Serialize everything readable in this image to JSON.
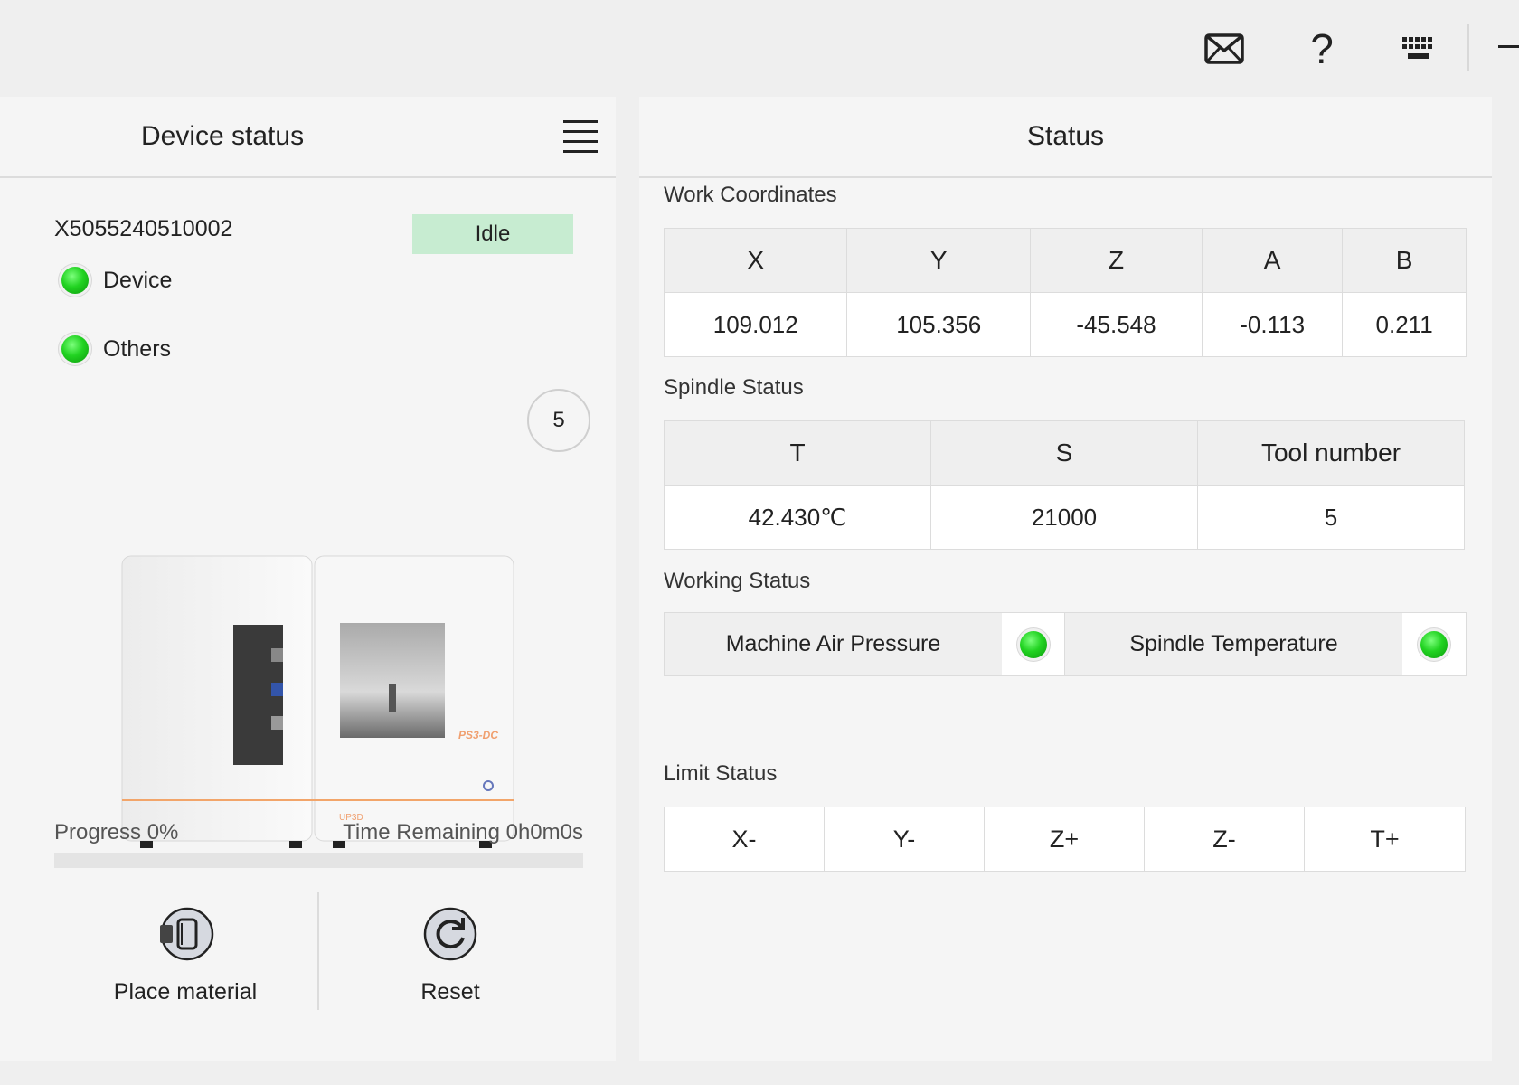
{
  "topbar": {
    "icons": [
      "mail-icon",
      "help-icon",
      "keyboard-icon",
      "minimize-icon"
    ],
    "help_glyph": "?"
  },
  "device_panel": {
    "title": "Device status",
    "serial": "X5055240510002",
    "state": "Idle",
    "state_color": "#c7ecd1",
    "indicators": [
      {
        "label": "Device",
        "status": "ok",
        "color": "#22d322"
      },
      {
        "label": "Others",
        "status": "ok",
        "color": "#22d322"
      }
    ],
    "tool_number": "5",
    "machine_model": "PS3-DC",
    "machine_brand": "UP3D",
    "progress_label": "Progress 0%",
    "progress_value": 0,
    "time_remaining": "Time Remaining 0h0m0s",
    "actions": [
      {
        "label": "Place material",
        "icon": "place-material-icon"
      },
      {
        "label": "Reset",
        "icon": "reset-icon"
      }
    ]
  },
  "status_panel": {
    "title": "Status",
    "work_coordinates": {
      "title": "Work Coordinates",
      "headers": [
        "X",
        "Y",
        "Z",
        "A",
        "B"
      ],
      "values": [
        "109.012",
        "105.356",
        "-45.548",
        "-0.113",
        "0.211"
      ]
    },
    "spindle_status": {
      "title": "Spindle Status",
      "headers": [
        "T",
        "S",
        "Tool number"
      ],
      "values": [
        "42.430℃",
        "21000",
        "5"
      ]
    },
    "working_status": {
      "title": "Working Status",
      "items": [
        {
          "label": "Machine Air Pressure",
          "status": "ok"
        },
        {
          "label": "Spindle Temperature",
          "status": "ok"
        }
      ]
    },
    "limit_status": {
      "title": "Limit Status",
      "items": [
        "X-",
        "Y-",
        "Z+",
        "Z-",
        "T+"
      ]
    }
  }
}
